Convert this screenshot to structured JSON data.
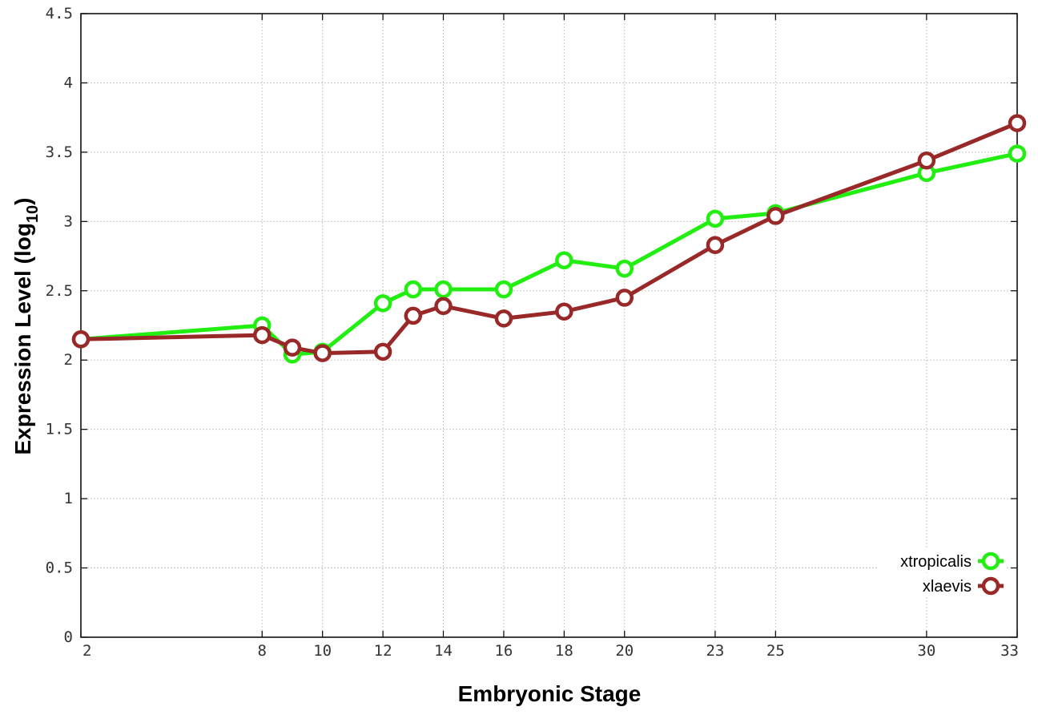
{
  "chart_data": {
    "type": "line",
    "xlabel": "Embryonic Stage",
    "ylabel_main": "Expression Level (log",
    "ylabel_sub": "10",
    "ylabel_close": ")",
    "x": [
      2,
      8,
      9,
      10,
      12,
      13,
      14,
      16,
      18,
      20,
      23,
      25,
      30,
      33
    ],
    "x_ticks": [
      2,
      8,
      10,
      12,
      14,
      16,
      18,
      20,
      23,
      25,
      30,
      33
    ],
    "xlim": [
      2,
      33
    ],
    "ylim": [
      0,
      4.5
    ],
    "y_ticks": [
      "0",
      "0.5",
      "1",
      "1.5",
      "2",
      "2.5",
      "3",
      "3.5",
      "4",
      "4.5"
    ],
    "grid": true,
    "legend_position": "bottom-right",
    "series": [
      {
        "name": "xtropicalis",
        "color": "#22ee11",
        "values": [
          2.15,
          2.25,
          2.04,
          2.06,
          2.41,
          2.51,
          2.51,
          2.51,
          2.72,
          2.66,
          3.02,
          3.06,
          3.35,
          3.49
        ]
      },
      {
        "name": "xlaevis",
        "color": "#992828",
        "values": [
          2.15,
          2.18,
          2.09,
          2.05,
          2.06,
          2.32,
          2.39,
          2.3,
          2.35,
          2.45,
          2.83,
          3.04,
          3.44,
          3.71
        ]
      }
    ]
  }
}
